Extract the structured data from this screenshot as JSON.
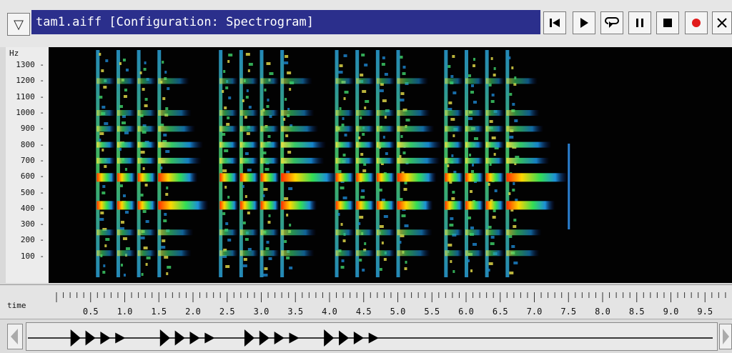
{
  "window": {
    "title": "tam1.aiff  [Configuration: Spectrogram]",
    "menu_icon": "triangle-down-icon"
  },
  "transport": [
    {
      "name": "skip-to-start-button",
      "icon": "skip-back-icon"
    },
    {
      "name": "play-button",
      "icon": "play-icon"
    },
    {
      "name": "loop-play-button",
      "icon": "loop-icon"
    },
    {
      "name": "pause-button",
      "icon": "pause-icon"
    },
    {
      "name": "stop-button",
      "icon": "stop-icon"
    },
    {
      "name": "record-button",
      "icon": "record-icon"
    },
    {
      "name": "close-button",
      "icon": "close-icon"
    }
  ],
  "colors": {
    "title_bar": "#2b2f8c",
    "record": "#e11b1b",
    "spectro_bg": "#020202"
  },
  "spectrogram": {
    "y_unit": "Hz",
    "y_ticks": [
      "1300",
      "1200",
      "1100",
      "1000",
      "900",
      "800",
      "700",
      "600",
      "500",
      "400",
      "300",
      "200",
      "100"
    ],
    "freq_range_hz": [
      0,
      1450
    ],
    "time_range_s": [
      0,
      10
    ],
    "strikes_s": [
      0.6,
      0.9,
      1.2,
      1.5,
      2.4,
      2.7,
      3.0,
      3.3,
      4.1,
      4.4,
      4.7,
      5.0,
      5.7,
      6.0,
      6.3,
      6.6
    ],
    "bands_hz": [
      {
        "freq": 420,
        "level": 0.9
      },
      {
        "freq": 595,
        "level": 0.95
      },
      {
        "freq": 700,
        "level": 0.55
      },
      {
        "freq": 800,
        "level": 0.6
      },
      {
        "freq": 900,
        "level": 0.4
      },
      {
        "freq": 1000,
        "level": 0.3
      },
      {
        "freq": 1200,
        "level": 0.25
      },
      {
        "freq": 250,
        "level": 0.35
      },
      {
        "freq": 120,
        "level": 0.3
      }
    ]
  },
  "time_axis": {
    "label": "time",
    "ticks": [
      "0.5",
      "1.0",
      "1.5",
      "2.0",
      "2.5",
      "3.0",
      "3.5",
      "4.0",
      "4.5",
      "5.0",
      "5.5",
      "6.0",
      "6.5",
      "7.0",
      "7.5",
      "8.0",
      "8.5",
      "9.0",
      "9.5"
    ],
    "tick_values": [
      0.5,
      1.0,
      1.5,
      2.0,
      2.5,
      3.0,
      3.5,
      4.0,
      4.5,
      5.0,
      5.5,
      6.0,
      6.5,
      7.0,
      7.5,
      8.0,
      8.5,
      9.0,
      9.5
    ]
  }
}
